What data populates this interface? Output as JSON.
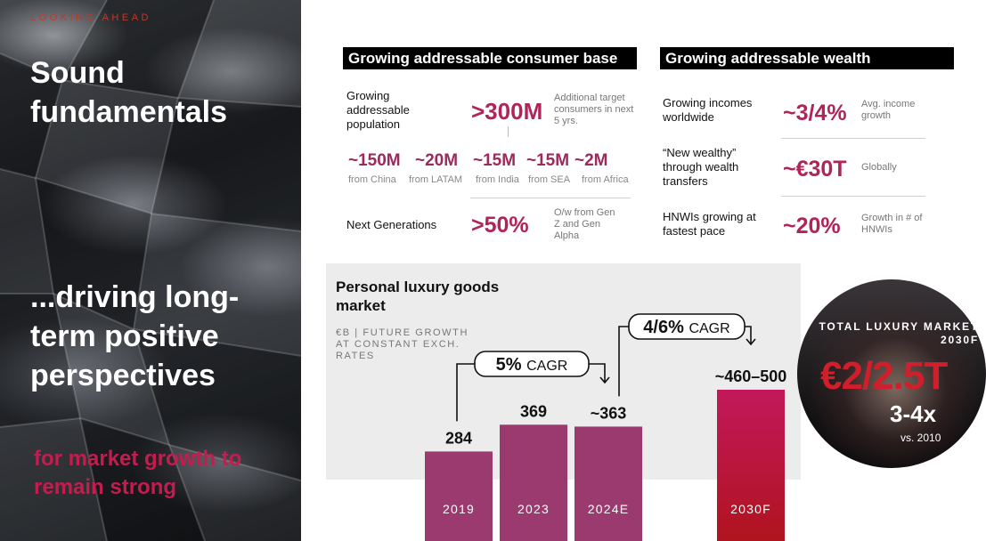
{
  "left": {
    "kicker": "LOOKING AHEAD",
    "title": "Sound fundamentals",
    "subtitle": "...driving long-term positive perspectives",
    "note": "for market growth to remain strong"
  },
  "consumer": {
    "header": "Growing addressable consumer base",
    "population_label": "Growing addressable population",
    "population_value": ">300M",
    "population_note": "Additional target consumers in next 5 yrs.",
    "regions": [
      {
        "value": "~150M",
        "label": "from China"
      },
      {
        "value": "~20M",
        "label": "from LATAM"
      },
      {
        "value": "~15M",
        "label": "from India"
      },
      {
        "value": "~15M",
        "label": "from SEA"
      },
      {
        "value": "~2M",
        "label": "from Africa"
      }
    ],
    "nextgen_label": "Next Generations",
    "nextgen_value": ">50%",
    "nextgen_note": "O/w from Gen Z and Gen Alpha"
  },
  "wealth": {
    "header": "Growing addressable wealth",
    "rows": [
      {
        "label": "Growing incomes worldwide",
        "value": "~3/4%",
        "note": "Avg. income growth"
      },
      {
        "label": "“New wealthy” through wealth transfers",
        "value": "~€30T",
        "note": "Globally"
      },
      {
        "label": "HNWIs growing at fastest pace",
        "value": "~20%",
        "note": "Growth in # of HNWIs"
      }
    ]
  },
  "chart_data": {
    "type": "bar",
    "title": "Personal luxury goods market",
    "unit_note": "€B | FUTURE GROWTH AT CONSTANT EXCH. RATES",
    "categories": [
      "2019",
      "2023",
      "2024E",
      "2030F"
    ],
    "values": [
      284,
      369,
      363,
      480
    ],
    "value_labels": [
      "284",
      "369",
      "~363",
      "~460–500"
    ],
    "range_2030F": [
      460,
      500
    ],
    "colors": {
      "actual": "#9b3a6e",
      "forecast_top": "#c2185b",
      "forecast_bottom": "#b0141e"
    },
    "annotations": [
      {
        "bold": "5%",
        "text": "CAGR",
        "from": "2019",
        "to": "2024E"
      },
      {
        "bold": "4/6%",
        "text": "CAGR",
        "from": "2024E",
        "to": "2030F"
      }
    ]
  },
  "total": {
    "kicker": "TOTAL LUXURY MARKET 2030F",
    "value": "€2/2.5T",
    "multiple": "3-4x",
    "vs": "vs. 2010"
  }
}
